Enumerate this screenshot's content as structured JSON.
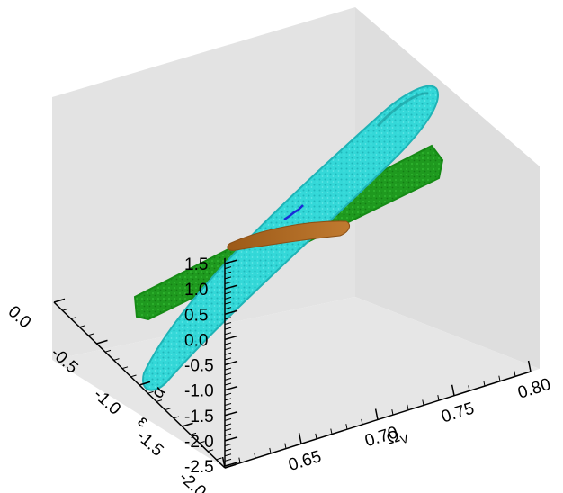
{
  "chart_data": {
    "type": "3d-surface",
    "title": "",
    "x_axis": {
      "label": "Ω",
      "label_sub": "V",
      "range": [
        0.6,
        0.8
      ],
      "ticks": [
        {
          "value": 0.65,
          "label": "0.65"
        },
        {
          "value": 0.7,
          "label": "0.70"
        },
        {
          "value": 0.75,
          "label": "0.75"
        },
        {
          "value": 0.8,
          "label": "0.80"
        }
      ]
    },
    "y_axis": {
      "label": "ε",
      "range": [
        -2.0,
        0.0
      ],
      "ticks": [
        {
          "value": 0.0,
          "label": "0.0"
        },
        {
          "value": -0.5,
          "label": "-0.5"
        },
        {
          "value": -1.0,
          "label": "-1.0"
        },
        {
          "value": -1.5,
          "label": "-1.5"
        },
        {
          "value": -2.0,
          "label": "-2.0"
        }
      ]
    },
    "z_axis": {
      "label": "α",
      "range": [
        -2.5,
        1.5
      ],
      "ticks": [
        {
          "value": 1.5,
          "label": "1.5"
        },
        {
          "value": 1.0,
          "label": "1.0"
        },
        {
          "value": 0.5,
          "label": "0.5"
        },
        {
          "value": 0.0,
          "label": "0.0"
        },
        {
          "value": -0.5,
          "label": "-0.5"
        },
        {
          "value": -1.0,
          "label": "-1.0"
        },
        {
          "value": -1.5,
          "label": "-1.5"
        },
        {
          "value": -2.0,
          "label": "-2.0"
        },
        {
          "value": -2.5,
          "label": "-2.5"
        }
      ]
    },
    "series": [
      {
        "color": "#2fd6d6",
        "shape": "elongated-ellipsoid"
      },
      {
        "color": "#1e9a1e",
        "shape": "elongated-ellipsoid"
      },
      {
        "color": "#b06a22",
        "shape": "elongated-ellipsoid"
      },
      {
        "color": "#1a2bd8",
        "shape": "curve"
      }
    ],
    "grid": false,
    "legend": "none",
    "background_color": "#e3e3e3"
  }
}
